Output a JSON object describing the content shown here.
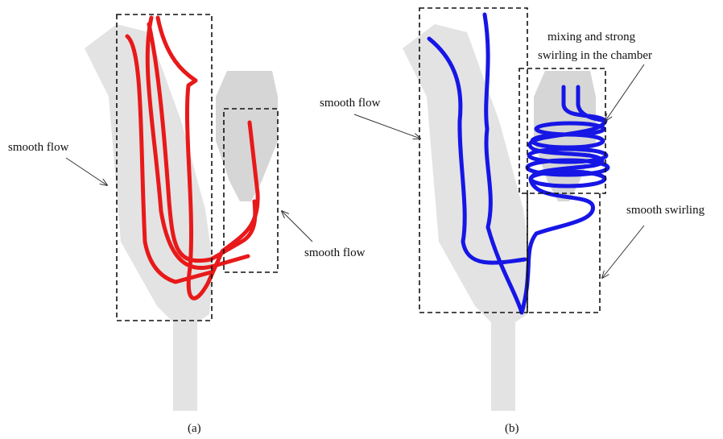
{
  "panels": [
    {
      "caption": "(a)",
      "annotations": [
        {
          "lines": [
            "smooth flow"
          ]
        },
        {
          "lines": [
            "smooth flow"
          ]
        }
      ]
    },
    {
      "caption": "(b)",
      "annotations": [
        {
          "lines": [
            "smooth flow"
          ]
        },
        {
          "lines": [
            "mixing and strong",
            "swirling in the chamber"
          ]
        },
        {
          "lines": [
            "smooth swirling"
          ]
        }
      ]
    }
  ]
}
